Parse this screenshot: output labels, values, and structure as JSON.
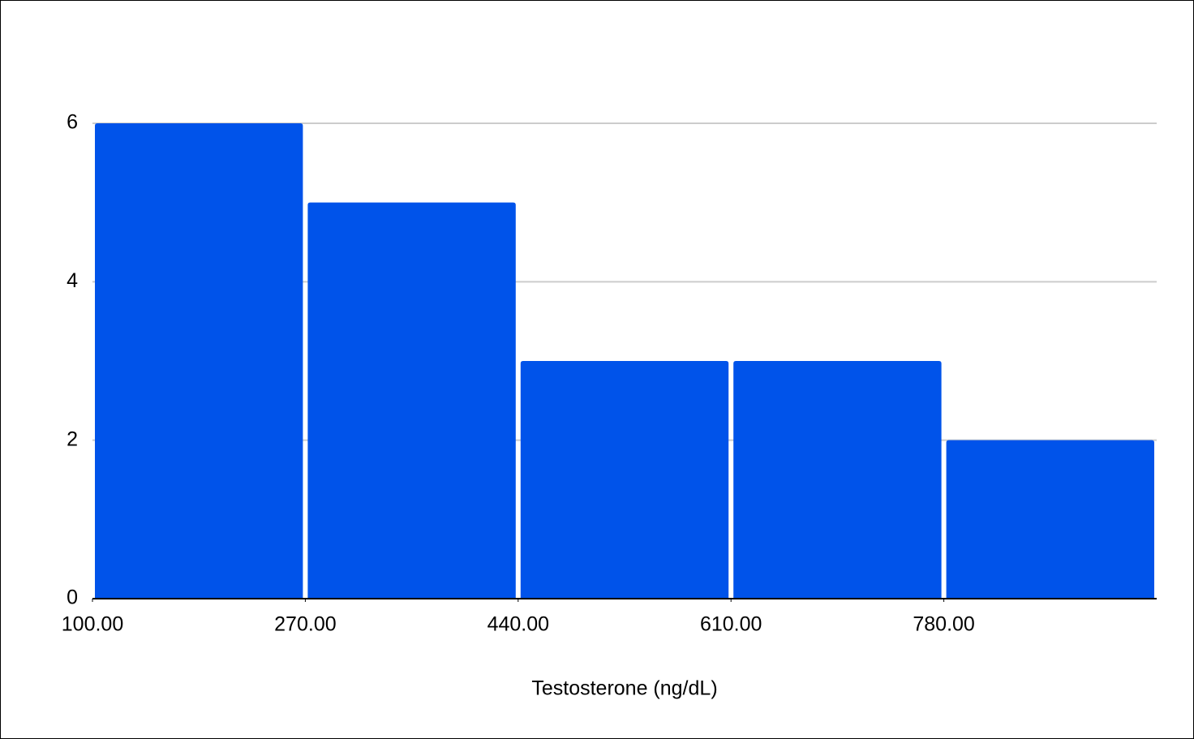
{
  "chart_data": {
    "type": "histogram",
    "x_label": "Testosterone (ng/dL)",
    "bins": [
      100,
      270,
      440,
      610,
      780,
      950
    ],
    "counts": [
      6,
      5,
      3,
      3,
      2
    ],
    "color": "#0053ea",
    "xlim": [
      100,
      950
    ],
    "xticks": [
      {
        "value": 100,
        "label": "100.00"
      },
      {
        "value": 270,
        "label": "270.00"
      },
      {
        "value": 440,
        "label": "440.00"
      },
      {
        "value": 610,
        "label": "610.00"
      },
      {
        "value": 780,
        "label": "780.00"
      }
    ],
    "ylim": [
      0,
      6
    ],
    "yticks": [
      0,
      2,
      4,
      6
    ],
    "grid": true
  }
}
